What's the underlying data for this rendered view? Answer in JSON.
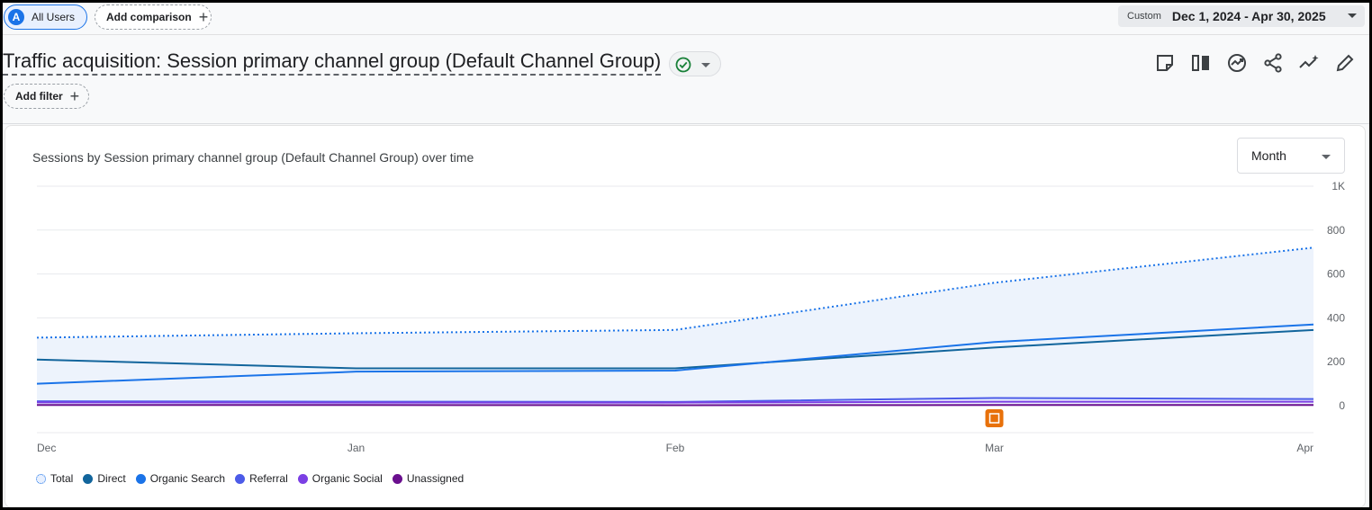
{
  "topbar": {
    "segment_avatar": "A",
    "segment_label": "All Users",
    "compare_label": "Add comparison",
    "date_custom": "Custom",
    "date_range": "Dec 1, 2024 - Apr 30, 2025"
  },
  "header": {
    "title": "Traffic acquisition: Session primary channel group (Default Channel Group)",
    "add_filter_label": "Add filter",
    "toolbar_icons": [
      "note-icon",
      "compare-columns-icon",
      "insights-icon",
      "share-icon",
      "trend-icon",
      "edit-icon"
    ]
  },
  "card": {
    "period_label": "Month"
  },
  "chart_data": {
    "type": "line",
    "title": "Sessions by Session primary channel group (Default Channel Group) over time",
    "categories": [
      "Dec",
      "Jan",
      "Feb",
      "Mar",
      "Apr"
    ],
    "ylim": [
      0,
      1000
    ],
    "y_ticks": [
      "1K",
      "800",
      "600",
      "400",
      "200",
      "0"
    ],
    "grid": true,
    "legend_position": "bottom-left",
    "series": [
      {
        "name": "Total",
        "color": "#1a73e8",
        "style": "dotted",
        "fill": "#edf3fc",
        "values": [
          310,
          330,
          345,
          560,
          720
        ]
      },
      {
        "name": "Direct",
        "color": "#12659c",
        "style": "solid",
        "values": [
          210,
          170,
          170,
          265,
          345
        ]
      },
      {
        "name": "Organic Search",
        "color": "#1a73e8",
        "style": "solid",
        "values": [
          100,
          155,
          160,
          290,
          370
        ]
      },
      {
        "name": "Referral",
        "color": "#4c5be8",
        "style": "solid",
        "values": [
          20,
          18,
          17,
          35,
          30
        ]
      },
      {
        "name": "Organic Social",
        "color": "#7b3fe4",
        "style": "solid",
        "values": [
          15,
          14,
          14,
          18,
          18
        ]
      },
      {
        "name": "Unassigned",
        "color": "#6a0f8e",
        "style": "solid",
        "values": [
          3,
          3,
          2,
          3,
          3
        ]
      }
    ],
    "annotation": {
      "category": "Mar",
      "icon": "annotation-icon",
      "color": "#e8710a"
    }
  }
}
